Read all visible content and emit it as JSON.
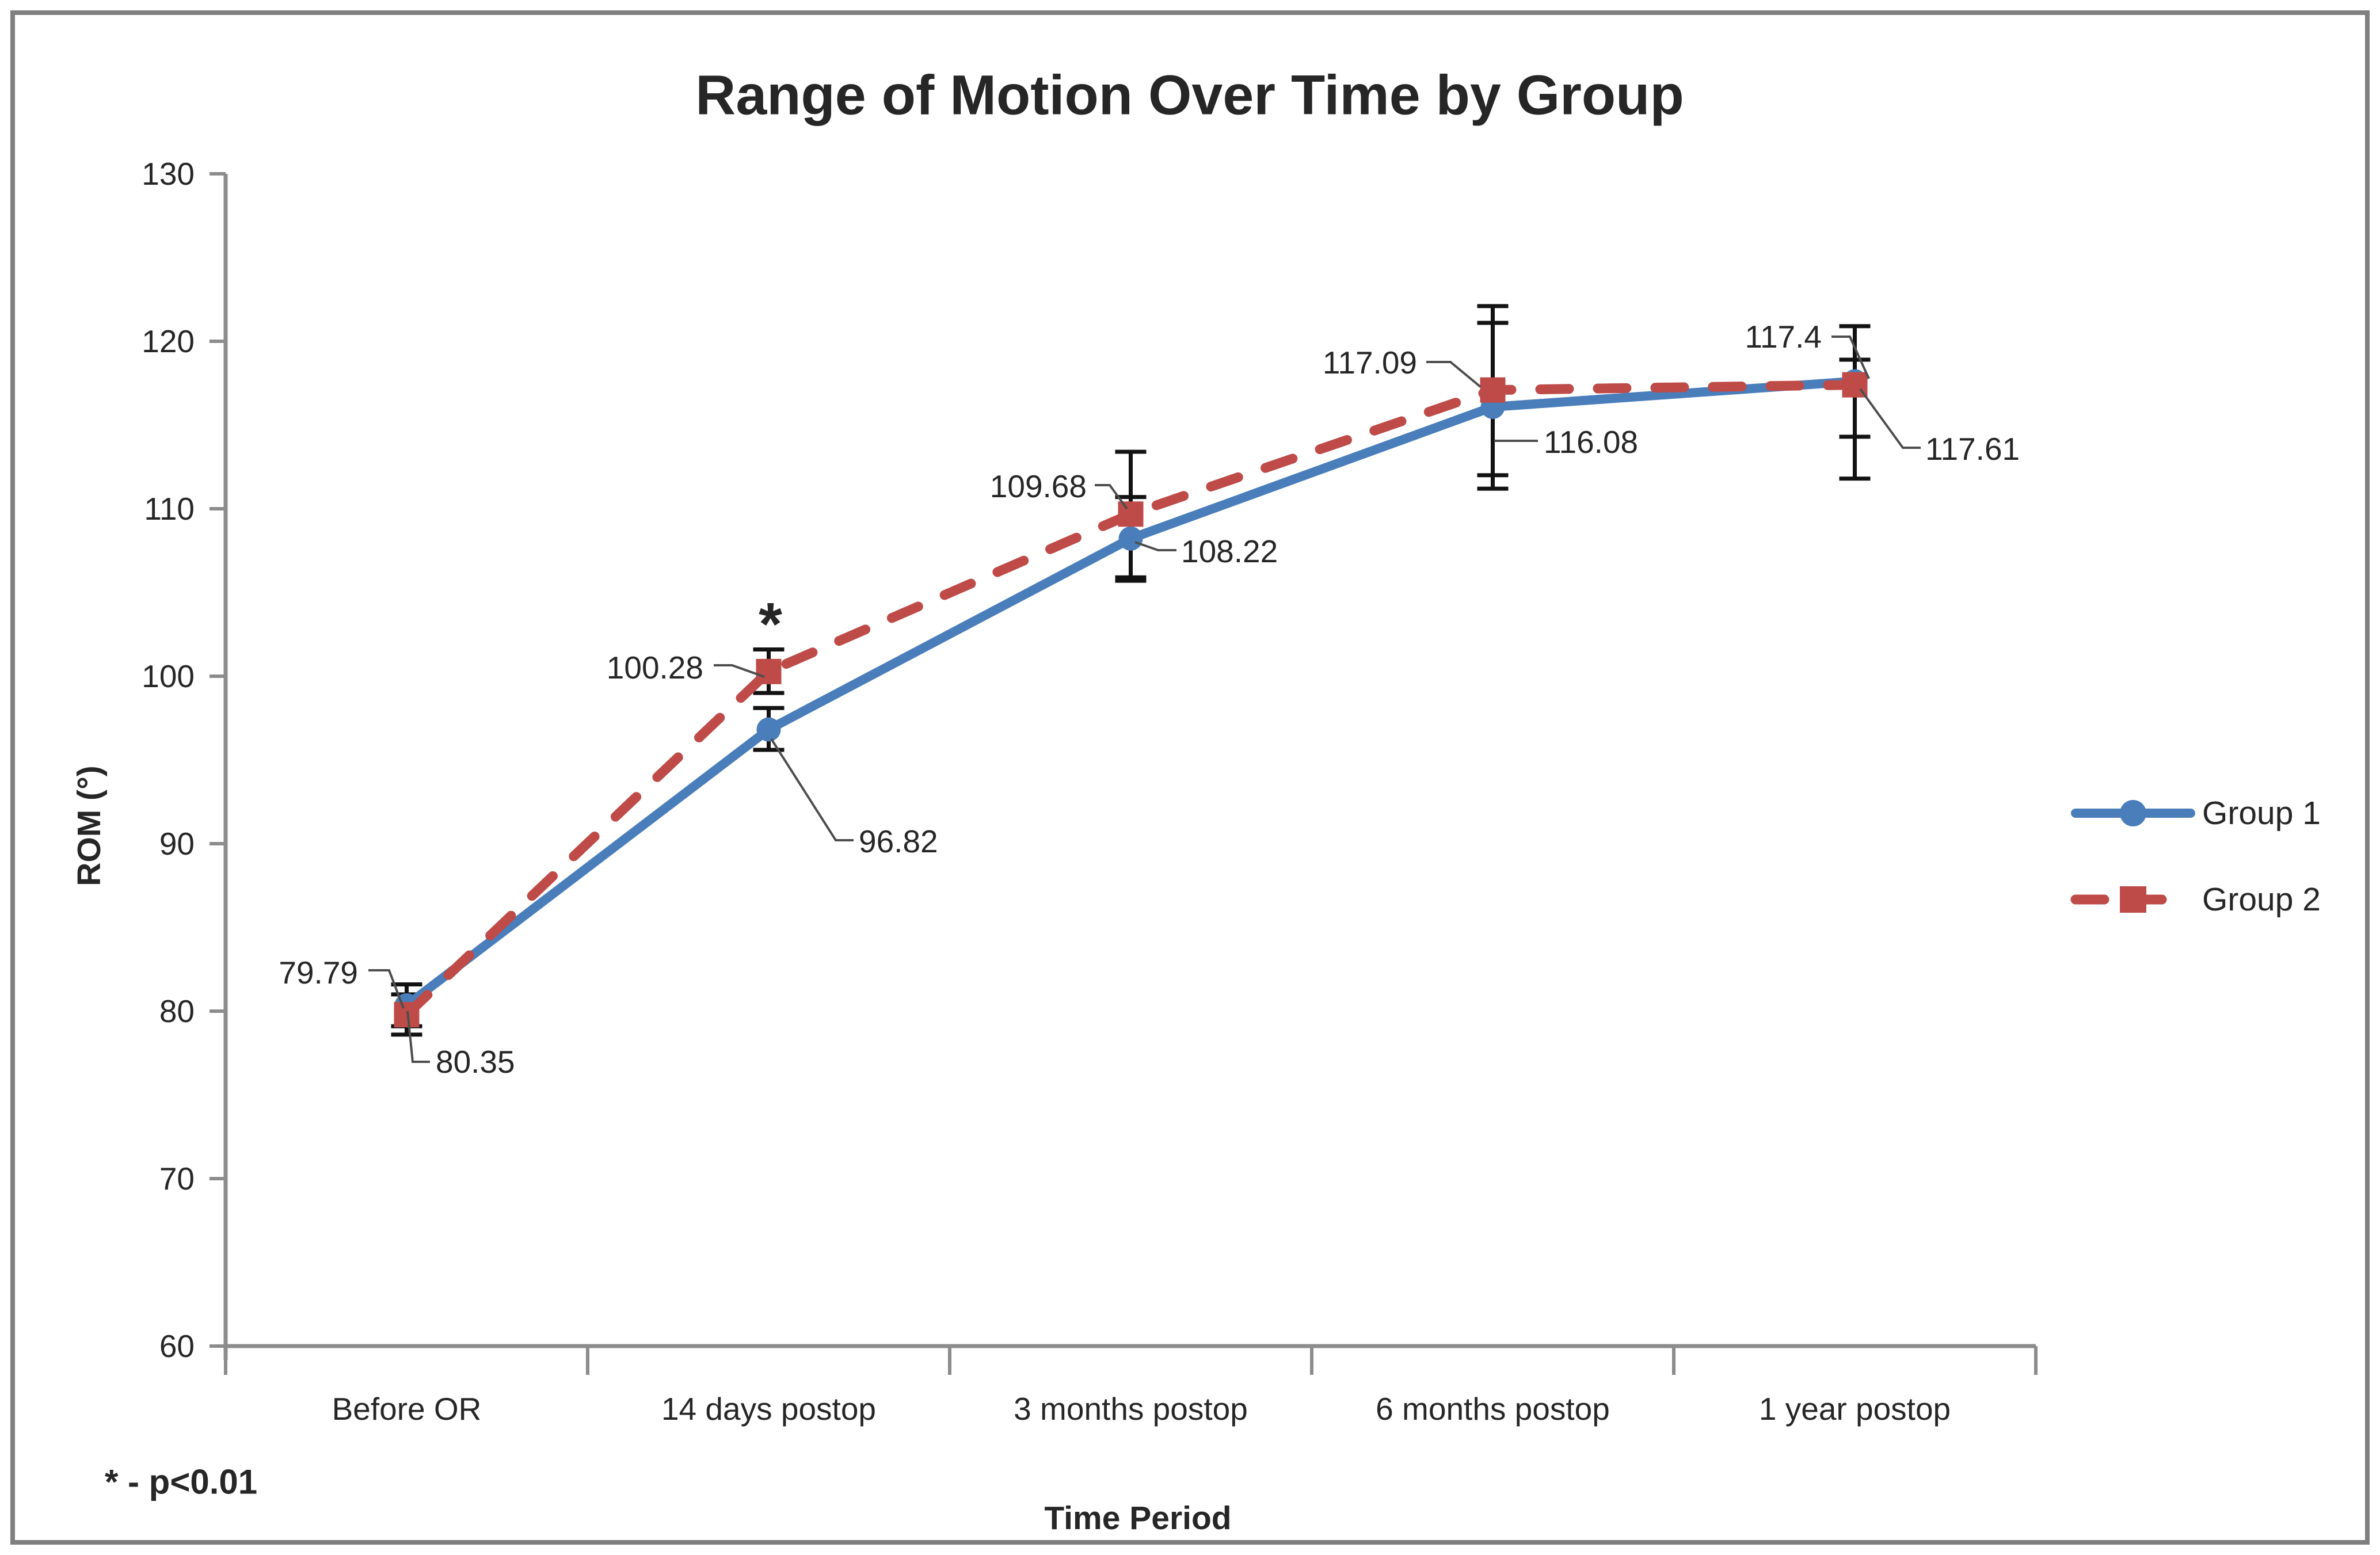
{
  "title": "Range of Motion Over Time by Group",
  "footnote": "* - p<0.01",
  "axes": {
    "x": {
      "title": "Time Period"
    },
    "y": {
      "title": "ROM (°)",
      "tick_labels": [
        "60",
        "70",
        "80",
        "90",
        "100",
        "110",
        "120",
        "130"
      ]
    }
  },
  "colors": {
    "group1": "#4A7EBB",
    "group2": "#BE4B48",
    "axis": "#8C8C8C",
    "frame": "#7F7F7F",
    "error_bar": "#121212",
    "leader": "#4D4D4D",
    "text": "#262626"
  },
  "chart_data": {
    "type": "line",
    "title": "Range of Motion Over Time by Group",
    "xlabel": "Time Period",
    "ylabel": "ROM (°)",
    "ylim": [
      60,
      130
    ],
    "ytick_step": 10,
    "grid": false,
    "legend_position": "right",
    "categories": [
      "Before OR",
      "14 days postop",
      "3 months postop",
      "6 months postop",
      "1 year postop"
    ],
    "series": [
      {
        "name": "Group 1",
        "color": "#4A7EBB",
        "line_style": "solid",
        "marker": "circle",
        "values": [
          80.35,
          96.82,
          108.22,
          116.08,
          117.61
        ],
        "labels": [
          "80.35",
          "96.82",
          "108.22",
          "116.08",
          "117.61"
        ],
        "error_low": [
          79.1,
          95.6,
          105.7,
          111.2,
          111.8
        ],
        "error_high": [
          81.6,
          98.1,
          110.7,
          121.1,
          120.9
        ]
      },
      {
        "name": "Group 2",
        "color": "#BE4B48",
        "line_style": "dashed",
        "marker": "square",
        "values": [
          79.79,
          100.28,
          109.68,
          117.09,
          117.4
        ],
        "labels": [
          "79.79",
          "100.28",
          "109.68",
          "117.09",
          "117.4"
        ],
        "error_low": [
          78.6,
          99.0,
          105.9,
          112.0,
          114.3
        ],
        "error_high": [
          81.0,
          101.6,
          113.4,
          122.1,
          118.9
        ]
      }
    ],
    "annotations": [
      {
        "text": "*",
        "series": "Group 2",
        "category_index": 1,
        "meaning": "p<0.01"
      }
    ]
  }
}
